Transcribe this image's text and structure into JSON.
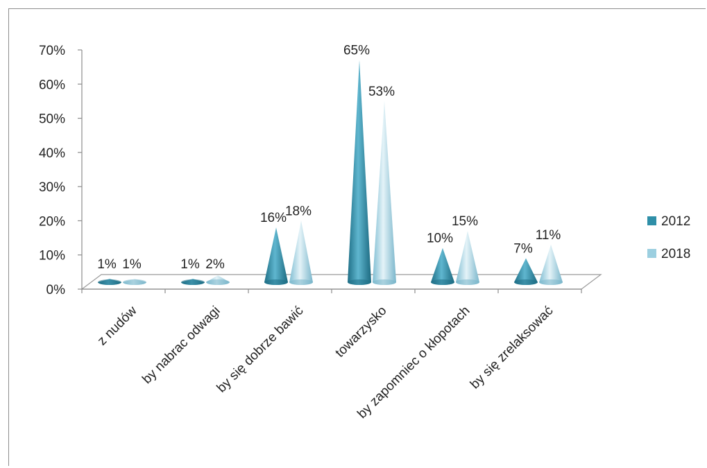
{
  "chart_data": {
    "type": "bar",
    "style": "3d-cone",
    "categories": [
      "z nudów",
      "by nabrac odwagi",
      "by się dobrze bawić",
      "towarzysko",
      "by zapomniec o kłopotach",
      "by się zrelaksować"
    ],
    "series": [
      {
        "name": "2012",
        "values": [
          1,
          1,
          16,
          65,
          10,
          7
        ],
        "labels": [
          "1%",
          "1%",
          "16%",
          "65%",
          "10%",
          "7%"
        ],
        "color": "#2f8fa8"
      },
      {
        "name": "2018",
        "values": [
          1,
          2,
          18,
          53,
          15,
          11
        ],
        "labels": [
          "1%",
          "2%",
          "18%",
          "53%",
          "15%",
          "11%"
        ],
        "color": "#9ccfe0"
      }
    ],
    "ylim": [
      0,
      70
    ],
    "yticks": [
      "0%",
      "10%",
      "20%",
      "30%",
      "40%",
      "50%",
      "60%",
      "70%"
    ],
    "grid": false,
    "legend": "right",
    "title": "",
    "xlabel": "",
    "ylabel": ""
  }
}
